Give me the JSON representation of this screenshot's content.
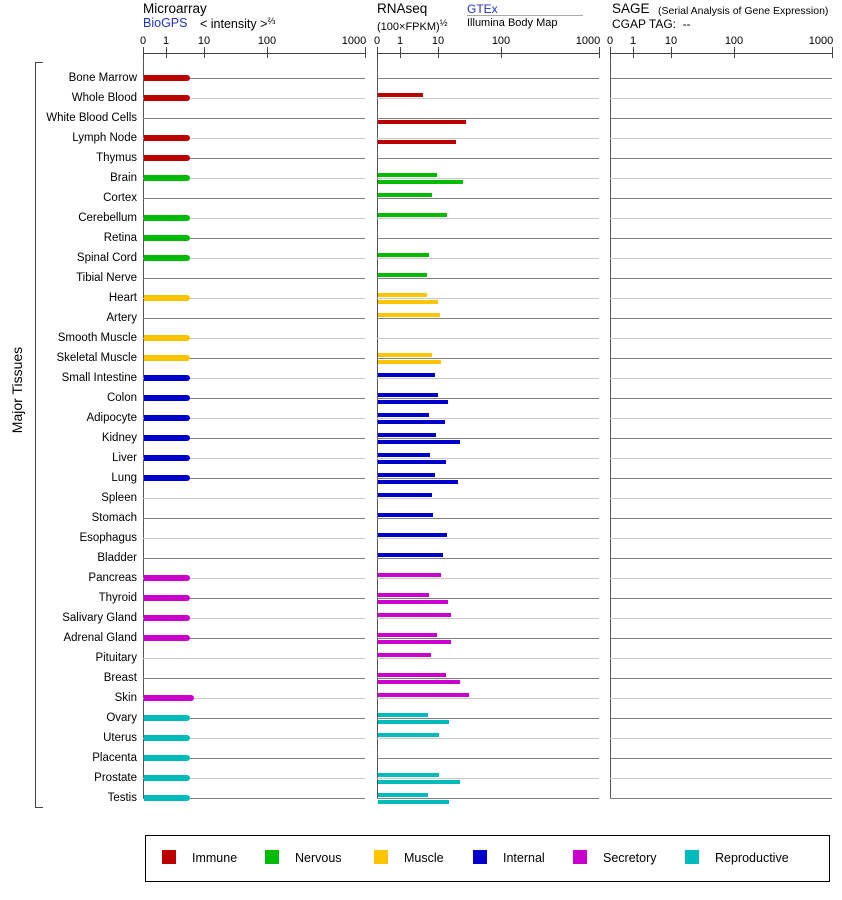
{
  "header": {
    "microarray": {
      "title": "Microarray",
      "link": "BioGPS",
      "scale_prefix": "< intensity >",
      "scale_exp": "⅔"
    },
    "rnaseq": {
      "title": "RNAseq",
      "unit_prefix": "(100×FPKM)",
      "unit_exp": "½",
      "link": "GTEx",
      "sublabel": "Illumina Body Map"
    },
    "sage": {
      "title": "SAGE",
      "subtitle": "(Serial Analysis of Gene Expression)",
      "cgap": "CGAP TAG:  --"
    }
  },
  "side_label": "Major Tissues",
  "legend": [
    {
      "label": "Immune",
      "color": "#bb0000"
    },
    {
      "label": "Nervous",
      "color": "#00bb00"
    },
    {
      "label": "Muscle",
      "color": "#ffc400"
    },
    {
      "label": "Internal",
      "color": "#0000cc"
    },
    {
      "label": "Secretory",
      "color": "#cc00cc"
    },
    {
      "label": "Reproductive",
      "color": "#00bbbb"
    }
  ],
  "chart_data": {
    "type": "bar",
    "orientation": "horizontal",
    "panels": [
      "Microarray (BioGPS)",
      "RNAseq (GTEx / Illumina Body Map)",
      "SAGE (CGAP TAG: --)"
    ],
    "axis_ticks": [
      0,
      1,
      10,
      100,
      1000
    ],
    "axis_scale": "nonlinear, identical ticks 0/1/10/100/1000 on all three panels",
    "group_colors": {
      "immune": "#bb0000",
      "nervous": "#00bb00",
      "muscle": "#ffc400",
      "internal": "#0000cc",
      "secretory": "#cc00cc",
      "reproductive": "#00bbbb"
    },
    "sage_values": "no bars shown (CGAP TAG: --)",
    "rows": [
      {
        "tissue": "Bone Marrow",
        "group": "immune",
        "microarray": 4.3,
        "gtex": null,
        "illumina": null
      },
      {
        "tissue": "Whole Blood",
        "group": "immune",
        "microarray": 4.3,
        "gtex": 4.0,
        "illumina": null
      },
      {
        "tissue": "White Blood Cells",
        "group": "immune",
        "microarray": null,
        "gtex": null,
        "illumina": 27.8
      },
      {
        "tissue": "Lymph Node",
        "group": "immune",
        "microarray": 4.3,
        "gtex": null,
        "illumina": 19.3
      },
      {
        "tissue": "Thymus",
        "group": "immune",
        "microarray": 4.3,
        "gtex": null,
        "illumina": null
      },
      {
        "tissue": "Brain",
        "group": "nervous",
        "microarray": 4.3,
        "gtex": 9.4,
        "illumina": 24.9
      },
      {
        "tissue": "Cortex",
        "group": "nervous",
        "microarray": null,
        "gtex": 7.0,
        "illumina": null
      },
      {
        "tissue": "Cerebellum",
        "group": "nervous",
        "microarray": 4.3,
        "gtex": 13.9,
        "illumina": null
      },
      {
        "tissue": "Retina",
        "group": "nervous",
        "microarray": 4.3,
        "gtex": null,
        "illumina": null
      },
      {
        "tissue": "Spinal Cord",
        "group": "nervous",
        "microarray": 4.3,
        "gtex": 5.8,
        "illumina": null
      },
      {
        "tissue": "Tibial Nerve",
        "group": "nervous",
        "microarray": null,
        "gtex": 5.1,
        "illumina": null
      },
      {
        "tissue": "Heart",
        "group": "muscle",
        "microarray": 4.3,
        "gtex": 5.1,
        "illumina": 10
      },
      {
        "tissue": "Artery",
        "group": "muscle",
        "microarray": null,
        "gtex": 10.8,
        "illumina": null
      },
      {
        "tissue": "Smooth Muscle",
        "group": "muscle",
        "microarray": 4.3,
        "gtex": null,
        "illumina": null
      },
      {
        "tissue": "Skeletal Muscle",
        "group": "muscle",
        "microarray": 4.3,
        "gtex": 7.0,
        "illumina": 11.2
      },
      {
        "tissue": "Small Intestine",
        "group": "internal",
        "microarray": 4.3,
        "gtex": 8.3,
        "illumina": null
      },
      {
        "tissue": "Colon",
        "group": "internal",
        "microarray": 4.3,
        "gtex": 10,
        "illumina": 14.4
      },
      {
        "tissue": "Adipocyte",
        "group": "internal",
        "microarray": 4.3,
        "gtex": 5.8,
        "illumina": 12.9
      },
      {
        "tissue": "Kidney",
        "group": "internal",
        "microarray": 4.3,
        "gtex": 8.8,
        "illumina": 22.3
      },
      {
        "tissue": "Liver",
        "group": "internal",
        "microarray": 4.3,
        "gtex": 6.2,
        "illumina": 13.4
      },
      {
        "tissue": "Lung",
        "group": "internal",
        "microarray": 4.3,
        "gtex": 8.3,
        "illumina": 20.8
      },
      {
        "tissue": "Spleen",
        "group": "internal",
        "microarray": null,
        "gtex": 7.0,
        "illumina": null
      },
      {
        "tissue": "Stomach",
        "group": "internal",
        "microarray": null,
        "gtex": 7.4,
        "illumina": null
      },
      {
        "tissue": "Esophagus",
        "group": "internal",
        "microarray": null,
        "gtex": 13.9,
        "illumina": null
      },
      {
        "tissue": "Bladder",
        "group": "internal",
        "microarray": null,
        "gtex": 12.0,
        "illumina": null
      },
      {
        "tissue": "Pancreas",
        "group": "secretory",
        "microarray": 4.3,
        "gtex": 11.2,
        "illumina": null
      },
      {
        "tissue": "Thyroid",
        "group": "secretory",
        "microarray": 4.3,
        "gtex": 5.8,
        "illumina": 14.4
      },
      {
        "tissue": "Salivary Gland",
        "group": "secretory",
        "microarray": 4.3,
        "gtex": 16.1,
        "illumina": null
      },
      {
        "tissue": "Adrenal Gland",
        "group": "secretory",
        "microarray": 4.3,
        "gtex": 9.4,
        "illumina": 16.1
      },
      {
        "tissue": "Pituitary",
        "group": "secretory",
        "microarray": null,
        "gtex": 6.6,
        "illumina": null
      },
      {
        "tissue": "Breast",
        "group": "secretory",
        "microarray": null,
        "gtex": 13.4,
        "illumina": 22.3
      },
      {
        "tissue": "Skin",
        "group": "secretory",
        "microarray": 5.5,
        "gtex": 31.1,
        "illumina": null
      },
      {
        "tissue": "Ovary",
        "group": "reproductive",
        "microarray": 4.3,
        "gtex": 5.5,
        "illumina": 14.9
      },
      {
        "tissue": "Uterus",
        "group": "reproductive",
        "microarray": 4.3,
        "gtex": 10.4,
        "illumina": null
      },
      {
        "tissue": "Placenta",
        "group": "reproductive",
        "microarray": 4.3,
        "gtex": null,
        "illumina": null
      },
      {
        "tissue": "Prostate",
        "group": "reproductive",
        "microarray": 4.3,
        "gtex": 10.4,
        "illumina": 22.3
      },
      {
        "tissue": "Testis",
        "group": "reproductive",
        "microarray": 4.3,
        "gtex": 5.5,
        "illumina": 14.9
      }
    ]
  }
}
